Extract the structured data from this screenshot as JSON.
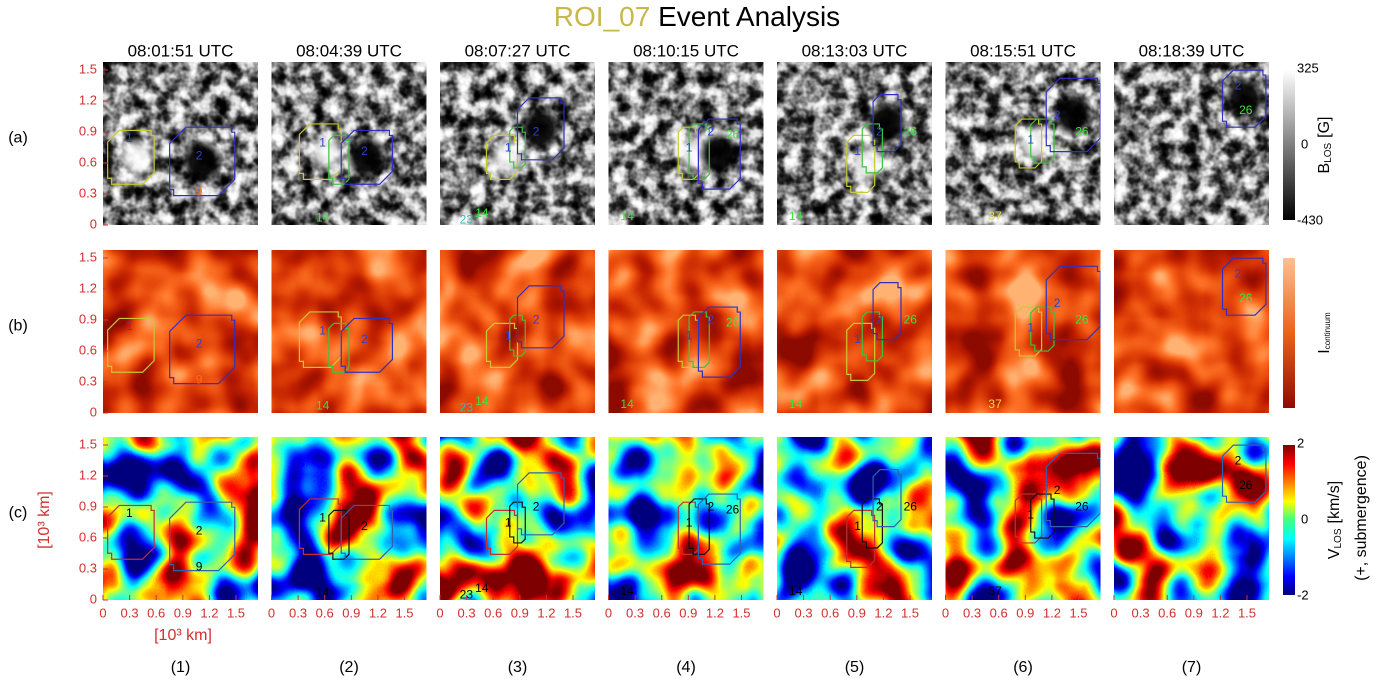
{
  "title": {
    "roi": "ROI_07",
    "rest": "Event Analysis"
  },
  "times": [
    "08:01:51 UTC",
    "08:04:39 UTC",
    "08:07:27 UTC",
    "08:10:15 UTC",
    "08:13:03 UTC",
    "08:15:51 UTC",
    "08:18:39 UTC"
  ],
  "rows": [
    "(a)",
    "(b)",
    "(c)"
  ],
  "columns": [
    "(1)",
    "(2)",
    "(3)",
    "(4)",
    "(5)",
    "(6)",
    "(7)"
  ],
  "yticks": [
    1.5,
    1.2,
    0.9,
    0.6,
    0.3,
    0
  ],
  "xticks": [
    0,
    0.3,
    0.6,
    0.9,
    1.2,
    1.5
  ],
  "ylabel": "[10³ km]",
  "xlabel": "[10³ km]",
  "colorbars": [
    {
      "max": 325,
      "mid": 0,
      "min": -430,
      "label": "B",
      "sub": "LOS",
      "unit": "[G]"
    },
    {
      "label": "I",
      "sub": "continuum"
    },
    {
      "max": 2,
      "mid": 0,
      "min": -2,
      "label": "V",
      "sub": "LOS",
      "unit": "[km/s]",
      "note": "(+, submergence)"
    }
  ],
  "regions": [
    [
      "1",
      "2",
      "9"
    ],
    [
      "1",
      "2",
      "14"
    ],
    [
      "1",
      "2",
      "14",
      "23"
    ],
    [
      "1",
      "2",
      "26",
      "14"
    ],
    [
      "1",
      "2",
      "26",
      "14"
    ],
    [
      "1",
      "2",
      "26",
      "37"
    ],
    [
      "2",
      "26"
    ]
  ]
}
